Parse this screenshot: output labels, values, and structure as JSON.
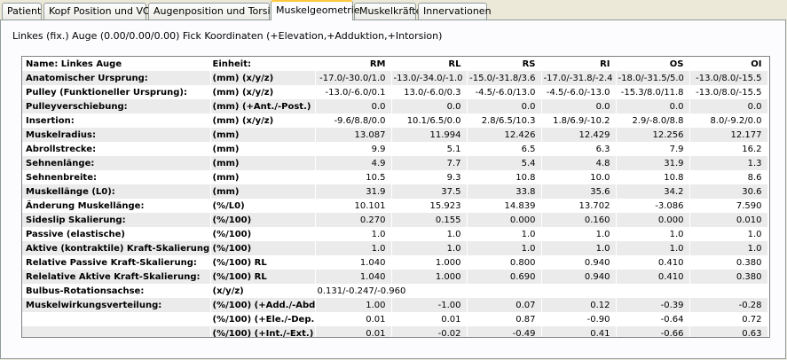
{
  "tabs": [
    {
      "label": "Patient",
      "active": false
    },
    {
      "label": "Kopf Position und VOR",
      "active": false
    },
    {
      "label": "Augenposition und Torsion",
      "active": false
    },
    {
      "label": "Muskelgeometrie",
      "active": true
    },
    {
      "label": "Muskelkräfte",
      "active": false
    },
    {
      "label": "Innervationen",
      "active": false
    }
  ],
  "subtitle": "Linkes (fix.) Auge (0.00/0.00/0.00) Fick Koordinaten (+Elevation,+Adduktion,+Intorsion)",
  "table": {
    "header": {
      "name": "Name: Linkes Auge",
      "unit": "Einheit:",
      "cols": [
        "RM",
        "RL",
        "RS",
        "RI",
        "OS",
        "OI"
      ]
    },
    "rows": [
      {
        "name": "Anatomischer Ursprung:",
        "unit": "(mm) (x/y/z)",
        "values": [
          "-17.0/-30.0/1.0",
          "-13.0/-34.0/-1.0",
          "-15.0/-31.8/3.6",
          "-17.0/-31.8/-2.4",
          "-18.0/-31.5/5.0",
          "-13.0/8.0/-15.5"
        ]
      },
      {
        "name": "Pulley (Funktioneller Ursprung):",
        "unit": "(mm) (x/y/z)",
        "values": [
          "-13.0/-6.0/0.1",
          "13.0/-6.0/0.3",
          "-4.5/-6.0/13.0",
          "-4.5/-6.0/-13.0",
          "-15.3/8.0/11.8",
          "-13.0/8.0/-15.5"
        ]
      },
      {
        "name": "Pulleyverschiebung:",
        "unit": "(mm) (+Ant./-Post.)",
        "values": [
          "0.0",
          "0.0",
          "0.0",
          "0.0",
          "0.0",
          "0.0"
        ]
      },
      {
        "name": "Insertion:",
        "unit": "(mm) (x/y/z)",
        "values": [
          "-9.6/8.8/0.0",
          "10.1/6.5/0.0",
          "2.8/6.5/10.3",
          "1.8/6.9/-10.2",
          "2.9/-8.0/8.8",
          "8.0/-9.2/0.0"
        ]
      },
      {
        "name": "Muskelradius:",
        "unit": "(mm)",
        "values": [
          "13.087",
          "11.994",
          "12.426",
          "12.429",
          "12.256",
          "12.177"
        ]
      },
      {
        "name": "Abrollstrecke:",
        "unit": "(mm)",
        "values": [
          "9.9",
          "5.1",
          "6.5",
          "6.3",
          "7.9",
          "16.2"
        ]
      },
      {
        "name": "Sehnenlänge:",
        "unit": "(mm)",
        "values": [
          "4.9",
          "7.7",
          "5.4",
          "4.8",
          "31.9",
          "1.3"
        ]
      },
      {
        "name": "Sehnenbreite:",
        "unit": "(mm)",
        "values": [
          "10.5",
          "9.3",
          "10.8",
          "10.0",
          "10.8",
          "8.6"
        ]
      },
      {
        "name": "Muskellänge (L0):",
        "unit": "(mm)",
        "values": [
          "31.9",
          "37.5",
          "33.8",
          "35.6",
          "34.2",
          "30.6"
        ]
      },
      {
        "name": "Änderung Muskellänge:",
        "unit": "(%/L0)",
        "values": [
          "10.101",
          "15.923",
          "14.839",
          "13.702",
          "-3.086",
          "7.590"
        ]
      },
      {
        "name": "Sideslip Skalierung:",
        "unit": "(%/100)",
        "values": [
          "0.270",
          "0.155",
          "0.000",
          "0.160",
          "0.000",
          "0.010"
        ]
      },
      {
        "name": "Passive (elastische)",
        "unit": "(%/100)",
        "values": [
          "1.0",
          "1.0",
          "1.0",
          "1.0",
          "1.0",
          "1.0"
        ]
      },
      {
        "name": "Aktive (kontraktile) Kraft-Skalierung:",
        "unit": "(%/100)",
        "values": [
          "1.0",
          "1.0",
          "1.0",
          "1.0",
          "1.0",
          "1.0"
        ]
      },
      {
        "name": "Relative Passive Kraft-Skalierung:",
        "unit": "(%/100) RL",
        "values": [
          "1.040",
          "1.000",
          "0.800",
          "0.940",
          "0.410",
          "0.380"
        ]
      },
      {
        "name": "Relelative Aktive Kraft-Skalierung:",
        "unit": "(%/100) RL",
        "values": [
          "1.040",
          "1.000",
          "0.690",
          "0.940",
          "0.410",
          "0.380"
        ]
      },
      {
        "name": "Bulbus-Rotationsachse:",
        "unit": "(x/y/z)",
        "wide": "0.131/-0.247/-0.960"
      },
      {
        "name": "Muskelwirkungsverteilung:",
        "unit": "(%/100) (+Add./-Abd.)",
        "values": [
          "1.00",
          "-1.00",
          "0.07",
          "0.12",
          "-0.39",
          "-0.28"
        ]
      },
      {
        "name": "",
        "unit": "(%/100) (+Ele./-Dep.)",
        "values": [
          "0.01",
          "0.01",
          "0.87",
          "-0.90",
          "-0.64",
          "0.72"
        ]
      },
      {
        "name": "",
        "unit": "(%/100) (+Int./-Ext.)",
        "values": [
          "0.01",
          "-0.02",
          "-0.49",
          "0.41",
          "-0.66",
          "0.63"
        ]
      }
    ]
  }
}
